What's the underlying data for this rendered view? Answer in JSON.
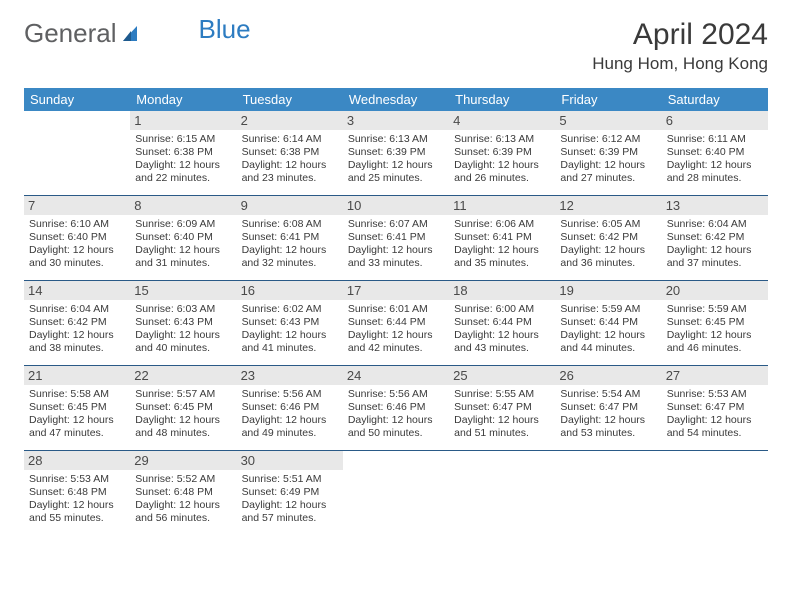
{
  "brand": {
    "part1": "General",
    "part2": "Blue"
  },
  "title": "April 2024",
  "location": "Hung Hom, Hong Kong",
  "colors": {
    "header_bg": "#3b88c4",
    "header_text": "#ffffff",
    "daynum_bg": "#e8e8e8",
    "week_border": "#2a5a87",
    "brand_gray": "#5f6062",
    "brand_blue": "#2d7cc1"
  },
  "day_names": [
    "Sunday",
    "Monday",
    "Tuesday",
    "Wednesday",
    "Thursday",
    "Friday",
    "Saturday"
  ],
  "weeks": [
    [
      null,
      {
        "n": "1",
        "sr": "Sunrise: 6:15 AM",
        "ss": "Sunset: 6:38 PM",
        "d1": "Daylight: 12 hours",
        "d2": "and 22 minutes."
      },
      {
        "n": "2",
        "sr": "Sunrise: 6:14 AM",
        "ss": "Sunset: 6:38 PM",
        "d1": "Daylight: 12 hours",
        "d2": "and 23 minutes."
      },
      {
        "n": "3",
        "sr": "Sunrise: 6:13 AM",
        "ss": "Sunset: 6:39 PM",
        "d1": "Daylight: 12 hours",
        "d2": "and 25 minutes."
      },
      {
        "n": "4",
        "sr": "Sunrise: 6:13 AM",
        "ss": "Sunset: 6:39 PM",
        "d1": "Daylight: 12 hours",
        "d2": "and 26 minutes."
      },
      {
        "n": "5",
        "sr": "Sunrise: 6:12 AM",
        "ss": "Sunset: 6:39 PM",
        "d1": "Daylight: 12 hours",
        "d2": "and 27 minutes."
      },
      {
        "n": "6",
        "sr": "Sunrise: 6:11 AM",
        "ss": "Sunset: 6:40 PM",
        "d1": "Daylight: 12 hours",
        "d2": "and 28 minutes."
      }
    ],
    [
      {
        "n": "7",
        "sr": "Sunrise: 6:10 AM",
        "ss": "Sunset: 6:40 PM",
        "d1": "Daylight: 12 hours",
        "d2": "and 30 minutes."
      },
      {
        "n": "8",
        "sr": "Sunrise: 6:09 AM",
        "ss": "Sunset: 6:40 PM",
        "d1": "Daylight: 12 hours",
        "d2": "and 31 minutes."
      },
      {
        "n": "9",
        "sr": "Sunrise: 6:08 AM",
        "ss": "Sunset: 6:41 PM",
        "d1": "Daylight: 12 hours",
        "d2": "and 32 minutes."
      },
      {
        "n": "10",
        "sr": "Sunrise: 6:07 AM",
        "ss": "Sunset: 6:41 PM",
        "d1": "Daylight: 12 hours",
        "d2": "and 33 minutes."
      },
      {
        "n": "11",
        "sr": "Sunrise: 6:06 AM",
        "ss": "Sunset: 6:41 PM",
        "d1": "Daylight: 12 hours",
        "d2": "and 35 minutes."
      },
      {
        "n": "12",
        "sr": "Sunrise: 6:05 AM",
        "ss": "Sunset: 6:42 PM",
        "d1": "Daylight: 12 hours",
        "d2": "and 36 minutes."
      },
      {
        "n": "13",
        "sr": "Sunrise: 6:04 AM",
        "ss": "Sunset: 6:42 PM",
        "d1": "Daylight: 12 hours",
        "d2": "and 37 minutes."
      }
    ],
    [
      {
        "n": "14",
        "sr": "Sunrise: 6:04 AM",
        "ss": "Sunset: 6:42 PM",
        "d1": "Daylight: 12 hours",
        "d2": "and 38 minutes."
      },
      {
        "n": "15",
        "sr": "Sunrise: 6:03 AM",
        "ss": "Sunset: 6:43 PM",
        "d1": "Daylight: 12 hours",
        "d2": "and 40 minutes."
      },
      {
        "n": "16",
        "sr": "Sunrise: 6:02 AM",
        "ss": "Sunset: 6:43 PM",
        "d1": "Daylight: 12 hours",
        "d2": "and 41 minutes."
      },
      {
        "n": "17",
        "sr": "Sunrise: 6:01 AM",
        "ss": "Sunset: 6:44 PM",
        "d1": "Daylight: 12 hours",
        "d2": "and 42 minutes."
      },
      {
        "n": "18",
        "sr": "Sunrise: 6:00 AM",
        "ss": "Sunset: 6:44 PM",
        "d1": "Daylight: 12 hours",
        "d2": "and 43 minutes."
      },
      {
        "n": "19",
        "sr": "Sunrise: 5:59 AM",
        "ss": "Sunset: 6:44 PM",
        "d1": "Daylight: 12 hours",
        "d2": "and 44 minutes."
      },
      {
        "n": "20",
        "sr": "Sunrise: 5:59 AM",
        "ss": "Sunset: 6:45 PM",
        "d1": "Daylight: 12 hours",
        "d2": "and 46 minutes."
      }
    ],
    [
      {
        "n": "21",
        "sr": "Sunrise: 5:58 AM",
        "ss": "Sunset: 6:45 PM",
        "d1": "Daylight: 12 hours",
        "d2": "and 47 minutes."
      },
      {
        "n": "22",
        "sr": "Sunrise: 5:57 AM",
        "ss": "Sunset: 6:45 PM",
        "d1": "Daylight: 12 hours",
        "d2": "and 48 minutes."
      },
      {
        "n": "23",
        "sr": "Sunrise: 5:56 AM",
        "ss": "Sunset: 6:46 PM",
        "d1": "Daylight: 12 hours",
        "d2": "and 49 minutes."
      },
      {
        "n": "24",
        "sr": "Sunrise: 5:56 AM",
        "ss": "Sunset: 6:46 PM",
        "d1": "Daylight: 12 hours",
        "d2": "and 50 minutes."
      },
      {
        "n": "25",
        "sr": "Sunrise: 5:55 AM",
        "ss": "Sunset: 6:47 PM",
        "d1": "Daylight: 12 hours",
        "d2": "and 51 minutes."
      },
      {
        "n": "26",
        "sr": "Sunrise: 5:54 AM",
        "ss": "Sunset: 6:47 PM",
        "d1": "Daylight: 12 hours",
        "d2": "and 53 minutes."
      },
      {
        "n": "27",
        "sr": "Sunrise: 5:53 AM",
        "ss": "Sunset: 6:47 PM",
        "d1": "Daylight: 12 hours",
        "d2": "and 54 minutes."
      }
    ],
    [
      {
        "n": "28",
        "sr": "Sunrise: 5:53 AM",
        "ss": "Sunset: 6:48 PM",
        "d1": "Daylight: 12 hours",
        "d2": "and 55 minutes."
      },
      {
        "n": "29",
        "sr": "Sunrise: 5:52 AM",
        "ss": "Sunset: 6:48 PM",
        "d1": "Daylight: 12 hours",
        "d2": "and 56 minutes."
      },
      {
        "n": "30",
        "sr": "Sunrise: 5:51 AM",
        "ss": "Sunset: 6:49 PM",
        "d1": "Daylight: 12 hours",
        "d2": "and 57 minutes."
      },
      null,
      null,
      null,
      null
    ]
  ]
}
